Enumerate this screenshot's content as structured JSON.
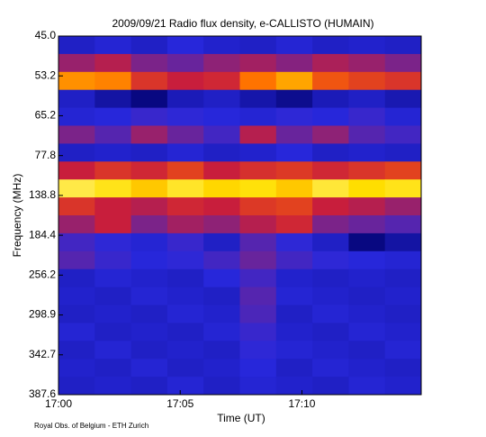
{
  "chart_data": {
    "type": "heatmap",
    "title": "2009/09/21  Radio flux density, e-CALLISTO (HUMAIN)",
    "xlabel": "Time (UT)",
    "ylabel": "Frequency (MHz)",
    "footer": "Royal Obs. of Belgium - ETH Zurich",
    "xlim": [
      0,
      14.9
    ],
    "xticks": [
      {
        "value": 0,
        "label": "17:00"
      },
      {
        "value": 5,
        "label": "17:05"
      },
      {
        "value": 10,
        "label": "17:10"
      }
    ],
    "ylim": [
      0,
      9
    ],
    "yticks": [
      {
        "value": 0,
        "label": "45.0"
      },
      {
        "value": 1,
        "label": "53.2"
      },
      {
        "value": 2,
        "label": "65.2"
      },
      {
        "value": 3,
        "label": "77.8"
      },
      {
        "value": 4,
        "label": "138.8"
      },
      {
        "value": 5,
        "label": "184.4"
      },
      {
        "value": 6,
        "label": "256.2"
      },
      {
        "value": 7,
        "label": "298.9"
      },
      {
        "value": 8,
        "label": "342.7"
      },
      {
        "value": 9,
        "label": "387.6"
      }
    ],
    "zlim": [
      0,
      1
    ],
    "colors": [
      "#000000",
      "#00006a",
      "#2828dc",
      "#c81e3c",
      "#ff6a00",
      "#ffe000",
      "#ffffff"
    ],
    "z": [
      [
        0.3,
        0.32,
        0.3,
        0.33,
        0.31,
        0.3,
        0.32,
        0.3,
        0.31,
        0.3
      ],
      [
        0.45,
        0.48,
        0.42,
        0.4,
        0.44,
        0.46,
        0.43,
        0.47,
        0.45,
        0.42
      ],
      [
        0.72,
        0.7,
        0.55,
        0.5,
        0.52,
        0.68,
        0.75,
        0.62,
        0.58,
        0.55
      ],
      [
        0.3,
        0.25,
        0.2,
        0.28,
        0.3,
        0.26,
        0.22,
        0.28,
        0.3,
        0.27
      ],
      [
        0.32,
        0.33,
        0.35,
        0.34,
        0.33,
        0.32,
        0.34,
        0.33,
        0.35,
        0.32
      ],
      [
        0.42,
        0.38,
        0.45,
        0.4,
        0.36,
        0.48,
        0.4,
        0.44,
        0.38,
        0.36
      ],
      [
        0.3,
        0.31,
        0.3,
        0.32,
        0.3,
        0.31,
        0.33,
        0.3,
        0.31,
        0.3
      ],
      [
        0.5,
        0.55,
        0.52,
        0.58,
        0.5,
        0.54,
        0.56,
        0.52,
        0.55,
        0.58
      ],
      [
        0.88,
        0.85,
        0.8,
        0.86,
        0.82,
        0.84,
        0.8,
        0.87,
        0.83,
        0.85
      ],
      [
        0.55,
        0.5,
        0.48,
        0.52,
        0.5,
        0.56,
        0.58,
        0.5,
        0.48,
        0.45
      ],
      [
        0.45,
        0.5,
        0.42,
        0.46,
        0.44,
        0.48,
        0.52,
        0.42,
        0.4,
        0.38
      ],
      [
        0.36,
        0.34,
        0.32,
        0.35,
        0.3,
        0.38,
        0.34,
        0.3,
        0.2,
        0.25
      ],
      [
        0.38,
        0.35,
        0.33,
        0.34,
        0.36,
        0.4,
        0.36,
        0.34,
        0.33,
        0.32
      ],
      [
        0.3,
        0.32,
        0.31,
        0.3,
        0.33,
        0.36,
        0.31,
        0.3,
        0.31,
        0.3
      ],
      [
        0.31,
        0.3,
        0.32,
        0.31,
        0.3,
        0.38,
        0.32,
        0.31,
        0.3,
        0.31
      ],
      [
        0.3,
        0.31,
        0.3,
        0.32,
        0.31,
        0.37,
        0.3,
        0.32,
        0.31,
        0.3
      ],
      [
        0.32,
        0.3,
        0.31,
        0.3,
        0.32,
        0.35,
        0.31,
        0.3,
        0.32,
        0.31
      ],
      [
        0.3,
        0.32,
        0.3,
        0.31,
        0.3,
        0.34,
        0.32,
        0.31,
        0.3,
        0.32
      ],
      [
        0.31,
        0.3,
        0.32,
        0.3,
        0.31,
        0.33,
        0.3,
        0.32,
        0.31,
        0.3
      ],
      [
        0.3,
        0.31,
        0.3,
        0.32,
        0.3,
        0.32,
        0.31,
        0.3,
        0.32,
        0.31
      ]
    ]
  }
}
